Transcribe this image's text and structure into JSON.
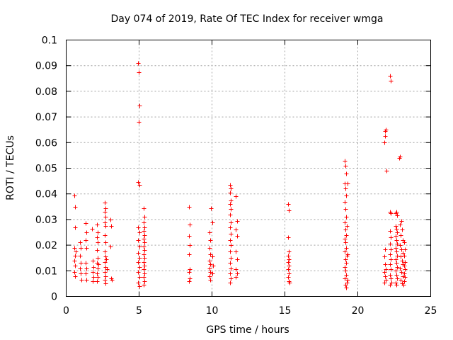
{
  "chart_data": {
    "type": "scatter",
    "title": "Day 074 of 2019, Rate Of TEC Index for receiver wmga",
    "xlabel": "GPS time / hours",
    "ylabel": "ROTI / TECUs",
    "xlim": [
      0,
      25
    ],
    "ylim": [
      0,
      0.1
    ],
    "grid": true,
    "marker": "+",
    "color": "#ff0000",
    "x_ticks": [
      0,
      5,
      10,
      15,
      20,
      25
    ],
    "x_tick_labels": [
      "0",
      "5",
      "10",
      "15",
      "20",
      "25"
    ],
    "y_ticks": [
      0,
      0.01,
      0.02,
      0.03,
      0.04,
      0.05,
      0.06,
      0.07,
      0.08,
      0.09,
      0.1
    ],
    "y_tick_labels": [
      "0",
      "0.01",
      "0.02",
      "0.03",
      "0.04",
      "0.05",
      "0.06",
      "0.07",
      "0.08",
      "0.09",
      "0.1"
    ],
    "series": [
      {
        "name": "ROTI",
        "points": [
          [
            0.55,
            0.0395
          ],
          [
            0.6,
            0.035
          ],
          [
            0.6,
            0.027
          ],
          [
            0.55,
            0.019
          ],
          [
            0.6,
            0.016
          ],
          [
            0.55,
            0.014
          ],
          [
            0.6,
            0.012
          ],
          [
            0.55,
            0.0095
          ],
          [
            0.6,
            0.008
          ],
          [
            0.65,
            0.0175
          ],
          [
            0.95,
            0.021
          ],
          [
            1.0,
            0.019
          ],
          [
            0.95,
            0.016
          ],
          [
            1.0,
            0.013
          ],
          [
            0.95,
            0.011
          ],
          [
            1.0,
            0.009
          ],
          [
            1.05,
            0.0065
          ],
          [
            1.35,
            0.0285
          ],
          [
            1.4,
            0.025
          ],
          [
            1.35,
            0.022
          ],
          [
            1.4,
            0.019
          ],
          [
            1.35,
            0.013
          ],
          [
            1.4,
            0.011
          ],
          [
            1.35,
            0.009
          ],
          [
            1.4,
            0.0065
          ],
          [
            1.75,
            0.0265
          ],
          [
            1.8,
            0.014
          ],
          [
            1.85,
            0.0115
          ],
          [
            1.8,
            0.0095
          ],
          [
            1.85,
            0.0075
          ],
          [
            1.8,
            0.006
          ],
          [
            2.1,
            0.028
          ],
          [
            2.15,
            0.025
          ],
          [
            2.1,
            0.023
          ],
          [
            2.15,
            0.021
          ],
          [
            2.1,
            0.018
          ],
          [
            2.15,
            0.015
          ],
          [
            2.1,
            0.013
          ],
          [
            2.15,
            0.011
          ],
          [
            2.1,
            0.009
          ],
          [
            2.15,
            0.0075
          ],
          [
            2.1,
            0.006
          ],
          [
            2.2,
            0.0125
          ],
          [
            2.65,
            0.0365
          ],
          [
            2.7,
            0.0345
          ],
          [
            2.65,
            0.033
          ],
          [
            2.7,
            0.031
          ],
          [
            2.65,
            0.029
          ],
          [
            2.7,
            0.0275
          ],
          [
            2.65,
            0.024
          ],
          [
            2.7,
            0.021
          ],
          [
            2.65,
            0.0175
          ],
          [
            2.7,
            0.0155
          ],
          [
            2.65,
            0.0135
          ],
          [
            2.7,
            0.0115
          ],
          [
            2.65,
            0.0095
          ],
          [
            2.7,
            0.008
          ],
          [
            2.65,
            0.0065
          ],
          [
            2.7,
            0.005
          ],
          [
            2.75,
            0.0145
          ],
          [
            2.8,
            0.0105
          ],
          [
            3.05,
            0.03
          ],
          [
            3.1,
            0.0275
          ],
          [
            3.05,
            0.0195
          ],
          [
            3.1,
            0.007
          ],
          [
            3.15,
            0.0065
          ],
          [
            4.95,
            0.091
          ],
          [
            4.98,
            0.0875
          ],
          [
            5.02,
            0.0745
          ],
          [
            4.98,
            0.068
          ],
          [
            4.95,
            0.0445
          ],
          [
            5.0,
            0.0435
          ],
          [
            4.95,
            0.027
          ],
          [
            5.0,
            0.025
          ],
          [
            4.95,
            0.022
          ],
          [
            5.0,
            0.0195
          ],
          [
            4.95,
            0.017
          ],
          [
            5.0,
            0.015
          ],
          [
            4.95,
            0.0135
          ],
          [
            5.0,
            0.0115
          ],
          [
            4.95,
            0.0095
          ],
          [
            5.0,
            0.0075
          ],
          [
            4.95,
            0.0055
          ],
          [
            5.0,
            0.004
          ],
          [
            5.3,
            0.0345
          ],
          [
            5.35,
            0.031
          ],
          [
            5.3,
            0.029
          ],
          [
            5.35,
            0.027
          ],
          [
            5.3,
            0.0255
          ],
          [
            5.35,
            0.024
          ],
          [
            5.3,
            0.0225
          ],
          [
            5.35,
            0.021
          ],
          [
            5.3,
            0.0195
          ],
          [
            5.35,
            0.018
          ],
          [
            5.3,
            0.0165
          ],
          [
            5.35,
            0.015
          ],
          [
            5.3,
            0.0135
          ],
          [
            5.35,
            0.012
          ],
          [
            5.3,
            0.0105
          ],
          [
            5.35,
            0.009
          ],
          [
            5.3,
            0.0075
          ],
          [
            5.35,
            0.006
          ],
          [
            5.3,
            0.0045
          ],
          [
            8.4,
            0.035
          ],
          [
            8.45,
            0.028
          ],
          [
            8.4,
            0.0235
          ],
          [
            8.45,
            0.02
          ],
          [
            8.4,
            0.0165
          ],
          [
            8.45,
            0.0105
          ],
          [
            8.4,
            0.0095
          ],
          [
            8.45,
            0.007
          ],
          [
            8.4,
            0.006
          ],
          [
            9.85,
            0.025
          ],
          [
            9.9,
            0.022
          ],
          [
            9.85,
            0.019
          ],
          [
            9.9,
            0.0165
          ],
          [
            9.85,
            0.014
          ],
          [
            9.9,
            0.0125
          ],
          [
            9.85,
            0.011
          ],
          [
            9.9,
            0.0095
          ],
          [
            9.85,
            0.008
          ],
          [
            9.9,
            0.0065
          ],
          [
            9.95,
            0.0345
          ],
          [
            10.0,
            0.029
          ],
          [
            10.0,
            0.0155
          ],
          [
            10.05,
            0.012
          ],
          [
            10.0,
            0.009
          ],
          [
            11.25,
            0.0435
          ],
          [
            11.3,
            0.042
          ],
          [
            11.25,
            0.0405
          ],
          [
            11.3,
            0.0375
          ],
          [
            11.25,
            0.036
          ],
          [
            11.3,
            0.034
          ],
          [
            11.25,
            0.032
          ],
          [
            11.3,
            0.029
          ],
          [
            11.25,
            0.027
          ],
          [
            11.3,
            0.0245
          ],
          [
            11.25,
            0.022
          ],
          [
            11.3,
            0.02
          ],
          [
            11.25,
            0.0175
          ],
          [
            11.3,
            0.015
          ],
          [
            11.25,
            0.013
          ],
          [
            11.3,
            0.011
          ],
          [
            11.25,
            0.009
          ],
          [
            11.3,
            0.007
          ],
          [
            11.25,
            0.0055
          ],
          [
            11.65,
            0.039
          ],
          [
            11.7,
            0.0295
          ],
          [
            11.65,
            0.026
          ],
          [
            11.7,
            0.0235
          ],
          [
            11.65,
            0.0175
          ],
          [
            11.7,
            0.0145
          ],
          [
            11.65,
            0.0105
          ],
          [
            11.7,
            0.009
          ],
          [
            11.65,
            0.0075
          ],
          [
            15.2,
            0.036
          ],
          [
            15.25,
            0.0335
          ],
          [
            15.2,
            0.023
          ],
          [
            15.25,
            0.0175
          ],
          [
            15.2,
            0.016
          ],
          [
            15.25,
            0.0145
          ],
          [
            15.2,
            0.0135
          ],
          [
            15.25,
            0.012
          ],
          [
            15.2,
            0.0105
          ],
          [
            15.25,
            0.009
          ],
          [
            15.2,
            0.0075
          ],
          [
            15.25,
            0.006
          ],
          [
            15.3,
            0.0055
          ],
          [
            19.1,
            0.053
          ],
          [
            19.15,
            0.051
          ],
          [
            19.2,
            0.048
          ],
          [
            19.1,
            0.044
          ],
          [
            19.3,
            0.044
          ],
          [
            19.15,
            0.042
          ],
          [
            19.2,
            0.0395
          ],
          [
            19.1,
            0.037
          ],
          [
            19.15,
            0.034
          ],
          [
            19.2,
            0.031
          ],
          [
            19.1,
            0.029
          ],
          [
            19.25,
            0.0275
          ],
          [
            19.15,
            0.026
          ],
          [
            19.2,
            0.024
          ],
          [
            19.1,
            0.0225
          ],
          [
            19.15,
            0.021
          ],
          [
            19.2,
            0.019
          ],
          [
            19.1,
            0.0175
          ],
          [
            19.25,
            0.016
          ],
          [
            19.15,
            0.0145
          ],
          [
            19.2,
            0.013
          ],
          [
            19.1,
            0.0115
          ],
          [
            19.15,
            0.01
          ],
          [
            19.2,
            0.0085
          ],
          [
            19.1,
            0.007
          ],
          [
            19.25,
            0.0055
          ],
          [
            19.15,
            0.0045
          ],
          [
            19.2,
            0.0035
          ],
          [
            19.3,
            0.0065
          ],
          [
            19.3,
            0.0165
          ],
          [
            21.85,
            0.0645
          ],
          [
            21.9,
            0.065
          ],
          [
            21.85,
            0.0625
          ],
          [
            21.8,
            0.06
          ],
          [
            21.95,
            0.049
          ],
          [
            21.85,
            0.0185
          ],
          [
            21.8,
            0.0155
          ],
          [
            21.85,
            0.0125
          ],
          [
            21.9,
            0.0105
          ],
          [
            21.8,
            0.0095
          ],
          [
            21.85,
            0.008
          ],
          [
            21.9,
            0.0065
          ],
          [
            21.8,
            0.0055
          ],
          [
            22.2,
            0.086
          ],
          [
            22.25,
            0.084
          ],
          [
            22.2,
            0.033
          ],
          [
            22.25,
            0.0325
          ],
          [
            22.2,
            0.0255
          ],
          [
            22.25,
            0.023
          ],
          [
            22.2,
            0.0205
          ],
          [
            22.25,
            0.0185
          ],
          [
            22.2,
            0.0165
          ],
          [
            22.25,
            0.0145
          ],
          [
            22.2,
            0.0125
          ],
          [
            22.25,
            0.0105
          ],
          [
            22.2,
            0.0085
          ],
          [
            22.25,
            0.007
          ],
          [
            22.3,
            0.0055
          ],
          [
            22.2,
            0.0045
          ],
          [
            22.6,
            0.0325
          ],
          [
            22.65,
            0.033
          ],
          [
            22.7,
            0.0315
          ],
          [
            22.6,
            0.0275
          ],
          [
            22.65,
            0.0265
          ],
          [
            22.7,
            0.025
          ],
          [
            22.6,
            0.0235
          ],
          [
            22.65,
            0.022
          ],
          [
            22.7,
            0.0205
          ],
          [
            22.6,
            0.019
          ],
          [
            22.65,
            0.0175
          ],
          [
            22.7,
            0.016
          ],
          [
            22.6,
            0.0145
          ],
          [
            22.65,
            0.013
          ],
          [
            22.7,
            0.0115
          ],
          [
            22.6,
            0.01
          ],
          [
            22.65,
            0.0085
          ],
          [
            22.7,
            0.007
          ],
          [
            22.6,
            0.0055
          ],
          [
            22.65,
            0.0045
          ],
          [
            22.9,
            0.0545
          ],
          [
            22.85,
            0.054
          ],
          [
            23.0,
            0.0295
          ],
          [
            22.9,
            0.028
          ],
          [
            23.05,
            0.026
          ],
          [
            22.95,
            0.024
          ],
          [
            23.1,
            0.022
          ],
          [
            22.9,
            0.02
          ],
          [
            23.0,
            0.0185
          ],
          [
            23.1,
            0.017
          ],
          [
            22.95,
            0.0155
          ],
          [
            23.05,
            0.014
          ],
          [
            23.1,
            0.0125
          ],
          [
            22.9,
            0.011
          ],
          [
            23.0,
            0.0095
          ],
          [
            23.1,
            0.008
          ],
          [
            22.95,
            0.0065
          ],
          [
            23.05,
            0.005
          ],
          [
            23.15,
            0.0045
          ],
          [
            23.2,
            0.021
          ],
          [
            23.25,
            0.0185
          ],
          [
            23.2,
            0.016
          ],
          [
            23.25,
            0.0135
          ],
          [
            23.2,
            0.012
          ],
          [
            23.25,
            0.0105
          ],
          [
            23.2,
            0.009
          ],
          [
            23.25,
            0.0075
          ],
          [
            23.2,
            0.006
          ]
        ]
      }
    ]
  }
}
